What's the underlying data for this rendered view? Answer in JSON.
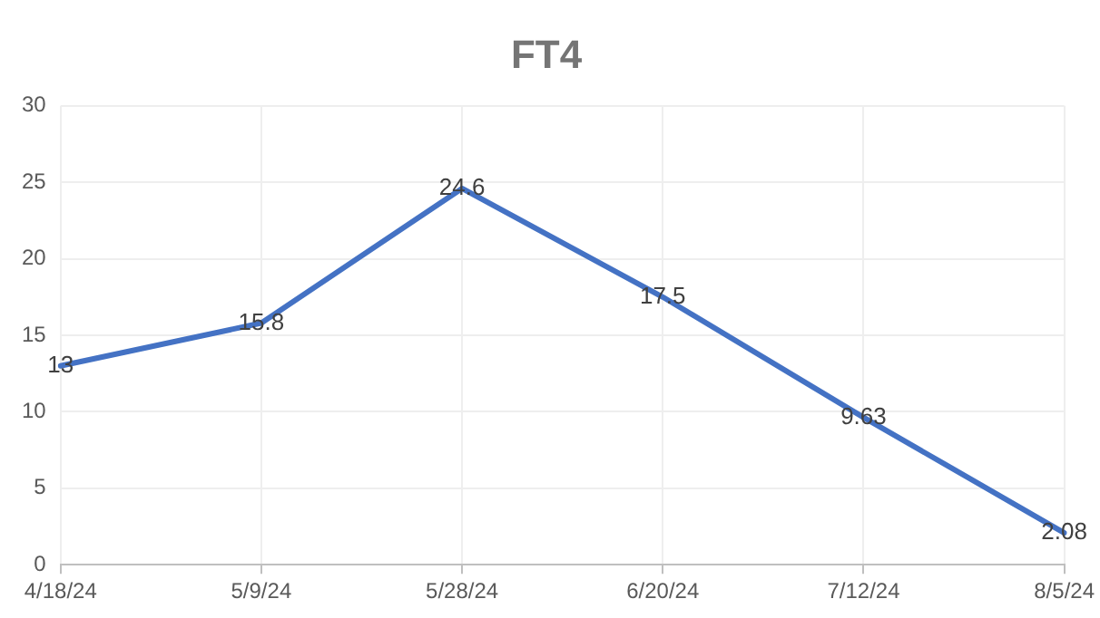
{
  "chart_data": {
    "type": "line",
    "title": "FT4",
    "categories": [
      "4/18/24",
      "5/9/24",
      "5/28/24",
      "6/20/24",
      "7/12/24",
      "8/5/24"
    ],
    "series": [
      {
        "color": "#4472c4",
        "values": [
          13,
          15.8,
          24.6,
          17.5,
          9.63,
          2.08
        ]
      }
    ],
    "ylim": [
      0,
      30
    ],
    "yticks": [
      0,
      5,
      10,
      15,
      20,
      25,
      30
    ],
    "grid": true,
    "data_labels": true,
    "legend": false,
    "marker": "none",
    "line_style": "solid"
  }
}
